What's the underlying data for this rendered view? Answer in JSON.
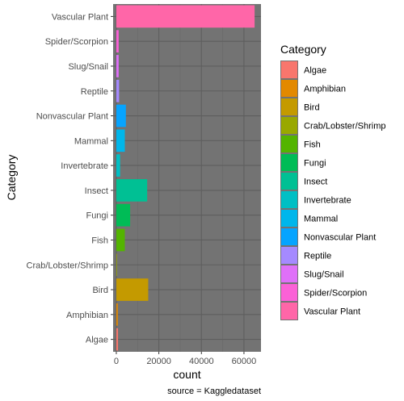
{
  "chart_data": {
    "type": "bar",
    "orientation": "horizontal",
    "categories": [
      "Algae",
      "Amphibian",
      "Bird",
      "Crab/Lobster/Shrimp",
      "Fish",
      "Fungi",
      "Insect",
      "Invertebrate",
      "Mammal",
      "Nonvascular Plant",
      "Reptile",
      "Slug/Snail",
      "Spider/Scorpion",
      "Vascular Plant"
    ],
    "values": [
      800,
      700,
      15000,
      200,
      4000,
      6500,
      14500,
      1800,
      4000,
      4500,
      1300,
      1100,
      1100,
      65000
    ],
    "colors": [
      "#F8766D",
      "#E38900",
      "#C49A00",
      "#99A800",
      "#53B400",
      "#00BC56",
      "#00C094",
      "#00BFC4",
      "#00B6EB",
      "#06A4FF",
      "#A58AFF",
      "#DF70F8",
      "#FB61D7",
      "#FF66A8"
    ],
    "xlabel": "count",
    "ylabel": "Category",
    "xlim": [
      -1500,
      68000
    ],
    "xticks": [
      0,
      20000,
      40000,
      60000
    ],
    "xtick_labels": [
      "0",
      "20000",
      "40000",
      "60000"
    ],
    "grid": true,
    "panel_background": "#737373",
    "legend": {
      "title": "Category",
      "placement": "right",
      "entries": [
        "Algae",
        "Amphibian",
        "Bird",
        "Crab/Lobster/Shrimp",
        "Fish",
        "Fungi",
        "Insect",
        "Invertebrate",
        "Mammal",
        "Nonvascular Plant",
        "Reptile",
        "Slug/Snail",
        "Spider/Scorpion",
        "Vascular Plant"
      ]
    },
    "caption": "source = Kaggledataset"
  }
}
